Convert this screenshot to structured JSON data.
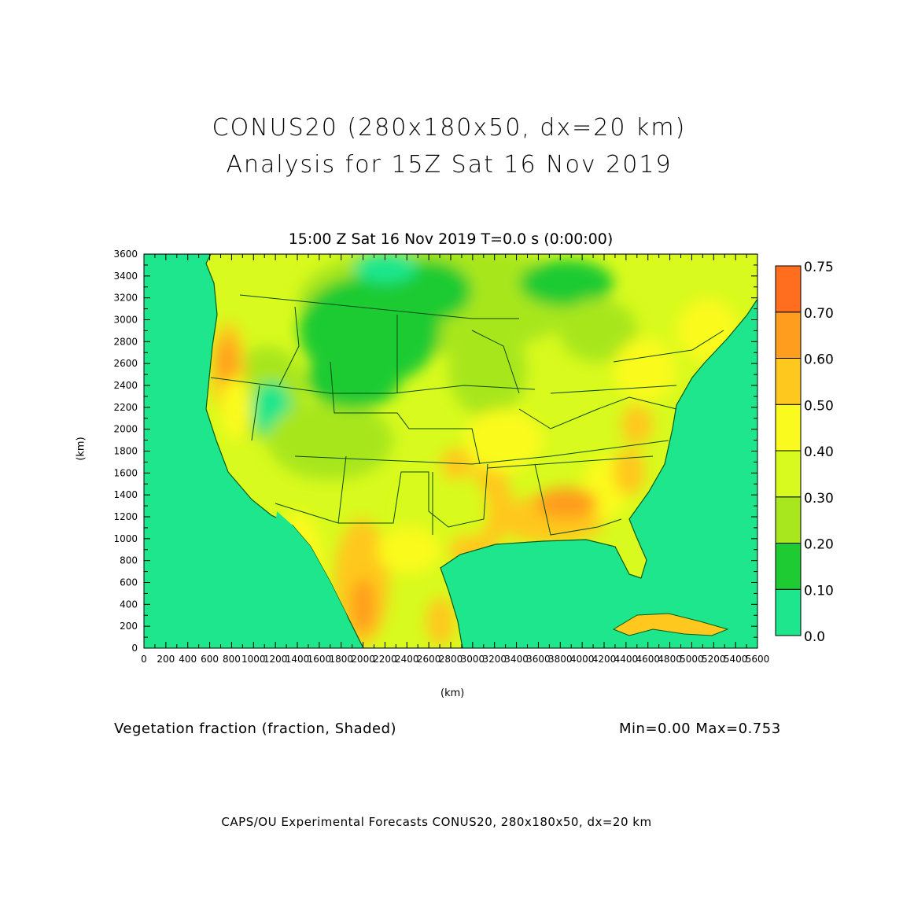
{
  "title": "CONUS20 (280x180x50, dx=20 km)",
  "subtitle": "Analysis for 15Z Sat 16 Nov 2019",
  "time_label": "15:00 Z Sat 16 Nov 2019    T=0.0 s (0:00:00)",
  "variable_label": "Vegetation fraction (fraction, Shaded)",
  "minmax_label": "Min=0.00  Max=0.753",
  "footer": "CAPS/OU Experimental Forecasts   CONUS20, 280x180x50, dx=20 km",
  "chart_data": {
    "type": "heatmap",
    "xlabel": "(km)",
    "ylabel": "(km)",
    "xlim": [
      0,
      5600
    ],
    "ylim": [
      0,
      3600
    ],
    "x_ticks": [
      "0",
      "200",
      "400",
      "600",
      "800",
      "1000",
      "1200",
      "1400",
      "1600",
      "1800",
      "2000",
      "2200",
      "2400",
      "2600",
      "2800",
      "3000",
      "3200",
      "3400",
      "3600",
      "3800",
      "4000",
      "4200",
      "4400",
      "4600",
      "4800",
      "5000",
      "5200",
      "5400",
      "5600"
    ],
    "y_ticks": [
      "0",
      "200",
      "400",
      "600",
      "800",
      "1000",
      "1200",
      "1400",
      "1600",
      "1800",
      "2000",
      "2200",
      "2400",
      "2600",
      "2800",
      "3000",
      "3200",
      "3400",
      "3600"
    ],
    "colorbar": {
      "levels": [
        "0.0",
        "0.10",
        "0.20",
        "0.30",
        "0.40",
        "0.50",
        "0.60",
        "0.70",
        "0.75"
      ],
      "colors": [
        "#1ee68c",
        "#1ecb32",
        "#a8e61e",
        "#d8fa1e",
        "#fafa1e",
        "#ffc81e",
        "#ff9d1e",
        "#ff6e1e"
      ]
    },
    "min": 0.0,
    "max": 0.753
  }
}
